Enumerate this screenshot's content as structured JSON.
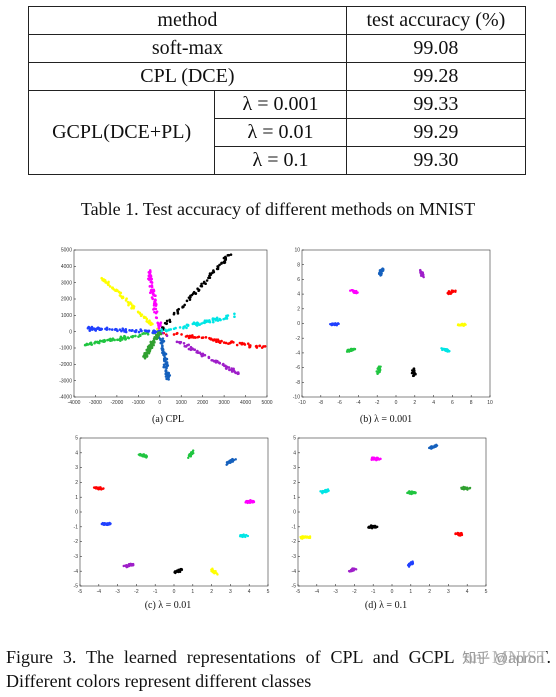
{
  "table": {
    "header": {
      "method": "method",
      "accuracy": "test accuracy (%)"
    },
    "rows": [
      {
        "method": "soft-max",
        "accuracy": "99.08"
      },
      {
        "method": "CPL (DCE)",
        "accuracy": "99.28"
      }
    ],
    "group": {
      "method": "GCPL(DCE+PL)",
      "subrows": [
        {
          "lambda": "λ = 0.001",
          "accuracy": "99.33"
        },
        {
          "lambda": "λ = 0.01",
          "accuracy": "99.29"
        },
        {
          "lambda": "λ = 0.1",
          "accuracy": "99.30"
        }
      ]
    },
    "caption": "Table 1. Test accuracy of different methods on MNIST"
  },
  "colors": [
    "#000000",
    "#00e5e5",
    "#ff0000",
    "#9f1fc9",
    "#1560bd",
    "#20c540",
    "#ffff00",
    "#ff00ff",
    "#2040ff",
    "#30a030"
  ],
  "chart_data": [
    {
      "type": "scatter",
      "label": "(a) CPL",
      "xlim": [
        -4000,
        5000
      ],
      "ylim": [
        -4000,
        5000
      ],
      "xticks": [
        -4000,
        -3000,
        -2000,
        -1000,
        0,
        1000,
        2000,
        3000,
        4000,
        5000
      ],
      "yticks": [
        -4000,
        -3000,
        -2000,
        -1000,
        0,
        1000,
        2000,
        3000,
        4000,
        5000
      ],
      "rays": [
        {
          "color": "#000000",
          "end": [
            3300,
            4800
          ]
        },
        {
          "color": "#00e5e5",
          "end": [
            3600,
            1000
          ]
        },
        {
          "color": "#ff0000",
          "end": [
            5000,
            -1000
          ]
        },
        {
          "color": "#9f1fc9",
          "end": [
            3700,
            -2600
          ]
        },
        {
          "color": "#1560bd",
          "end": [
            400,
            -2900
          ]
        },
        {
          "color": "#20c540",
          "end": [
            -3500,
            -800
          ]
        },
        {
          "color": "#2040ff",
          "end": [
            -3400,
            200
          ]
        },
        {
          "color": "#ffff00",
          "end": [
            -2700,
            3300
          ]
        },
        {
          "color": "#ff00ff",
          "end": [
            -500,
            3700
          ]
        },
        {
          "color": "#30a030",
          "end": [
            -700,
            -1500
          ]
        }
      ]
    },
    {
      "type": "scatter",
      "label": "(b) λ = 0.001",
      "xlim": [
        -10,
        10
      ],
      "ylim": [
        -10,
        10
      ],
      "xticks": [
        -10,
        -8,
        -6,
        -4,
        -2,
        0,
        2,
        4,
        6,
        8,
        10
      ],
      "yticks": [
        -10,
        -8,
        -6,
        -4,
        -2,
        0,
        2,
        4,
        6,
        8,
        10
      ],
      "clusters": [
        {
          "color": "#1560bd",
          "center": [
            -1.6,
            7.0
          ],
          "angle": 75
        },
        {
          "color": "#9f1fc9",
          "center": [
            2.7,
            6.8
          ],
          "angle": -70
        },
        {
          "color": "#ff00ff",
          "center": [
            -4.4,
            4.3
          ],
          "angle": -30
        },
        {
          "color": "#ff0000",
          "center": [
            5.9,
            4.3
          ],
          "angle": 25
        },
        {
          "color": "#2040ff",
          "center": [
            -6.6,
            -0.1
          ],
          "angle": 0
        },
        {
          "color": "#ffff00",
          "center": [
            7.0,
            -0.2
          ],
          "angle": 0
        },
        {
          "color": "#20c540",
          "center": [
            -4.8,
            -3.6
          ],
          "angle": 25
        },
        {
          "color": "#00e5e5",
          "center": [
            5.3,
            -3.6
          ],
          "angle": -25
        },
        {
          "color": "#20c540",
          "center": [
            -1.8,
            -6.3
          ],
          "angle": 80
        },
        {
          "color": "#000000",
          "center": [
            1.9,
            -6.7
          ],
          "angle": -80
        }
      ]
    },
    {
      "type": "scatter",
      "label": "(c) λ = 0.01",
      "xlim": [
        -5,
        5
      ],
      "ylim": [
        -5,
        5
      ],
      "xticks": [
        -5,
        -4,
        -3,
        -2,
        -1,
        0,
        1,
        2,
        3,
        4,
        5
      ],
      "yticks": [
        -5,
        -4,
        -3,
        -2,
        -1,
        0,
        1,
        2,
        3,
        4,
        5
      ],
      "clusters": [
        {
          "color": "#20c540",
          "center": [
            -1.6,
            3.8
          ],
          "angle": -20
        },
        {
          "color": "#20c540",
          "center": [
            0.9,
            3.9
          ],
          "angle": 60
        },
        {
          "color": "#1560bd",
          "center": [
            3.0,
            3.4
          ],
          "angle": 40
        },
        {
          "color": "#ff0000",
          "center": [
            -4.0,
            1.6
          ],
          "angle": -5
        },
        {
          "color": "#ff00ff",
          "center": [
            4.0,
            0.7
          ],
          "angle": 5
        },
        {
          "color": "#2040ff",
          "center": [
            -3.6,
            -0.8
          ],
          "angle": 0
        },
        {
          "color": "#00e5e5",
          "center": [
            3.7,
            -1.6
          ],
          "angle": -10
        },
        {
          "color": "#9f1fc9",
          "center": [
            -2.4,
            -3.6
          ],
          "angle": 20
        },
        {
          "color": "#000000",
          "center": [
            0.2,
            -4.0
          ],
          "angle": 30
        },
        {
          "color": "#ffff00",
          "center": [
            2.1,
            -4.0
          ],
          "angle": -40
        }
      ]
    },
    {
      "type": "scatter",
      "label": "(d) λ = 0.1",
      "xlim": [
        -5,
        5
      ],
      "ylim": [
        -5,
        5
      ],
      "xticks": [
        -5,
        -4,
        -3,
        -2,
        -1,
        0,
        1,
        2,
        3,
        4,
        5
      ],
      "yticks": [
        -5,
        -4,
        -3,
        -2,
        -1,
        0,
        1,
        2,
        3,
        4,
        5
      ],
      "clusters": [
        {
          "color": "#1560bd",
          "center": [
            2.2,
            4.4
          ],
          "angle": 30
        },
        {
          "color": "#ff00ff",
          "center": [
            -0.9,
            3.6
          ],
          "angle": 0
        },
        {
          "color": "#00e5e5",
          "center": [
            -3.6,
            1.4
          ],
          "angle": 20
        },
        {
          "color": "#20c540",
          "center": [
            1.0,
            1.3
          ],
          "angle": 0
        },
        {
          "color": "#30a030",
          "center": [
            3.9,
            1.6
          ],
          "angle": 0
        },
        {
          "color": "#000000",
          "center": [
            -1.0,
            -1.0
          ],
          "angle": 0
        },
        {
          "color": "#ff0000",
          "center": [
            3.6,
            -1.5
          ],
          "angle": 0
        },
        {
          "color": "#ffff00",
          "center": [
            -4.6,
            -1.7
          ],
          "angle": 0
        },
        {
          "color": "#2040ff",
          "center": [
            1.0,
            -3.5
          ],
          "angle": 40
        },
        {
          "color": "#9f1fc9",
          "center": [
            -2.1,
            -3.9
          ],
          "angle": 20
        }
      ]
    }
  ],
  "figure_caption": "Figure 3. The learned representations of CPL and GCPL on MNIST. Different colors represent different classes",
  "watermark": "知乎 @apron"
}
